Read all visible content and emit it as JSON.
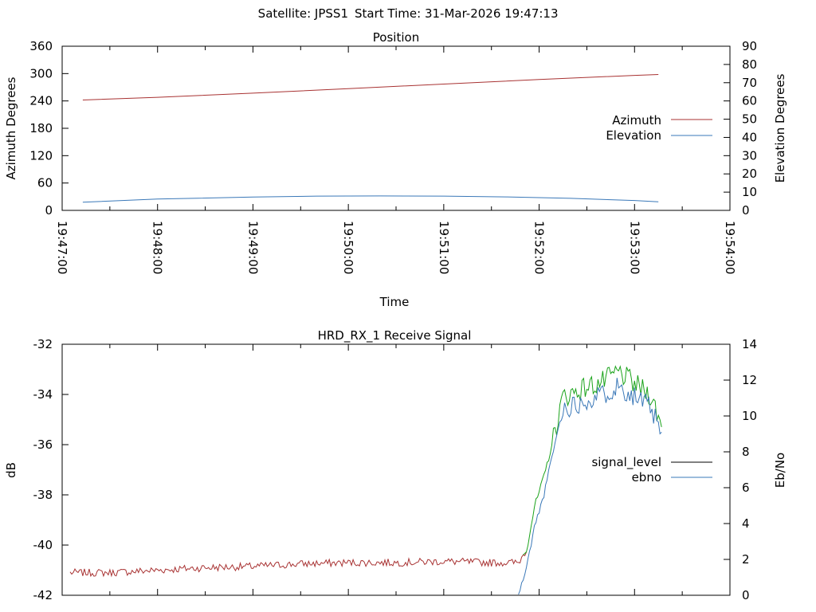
{
  "header": {
    "satellite": "Satellite: JPSS1",
    "start_time": "Start Time: 31-Mar-2026 19:47:13"
  },
  "chart_data": [
    {
      "type": "line",
      "title": "Position",
      "xlabel": "Time",
      "ylabel": "Azimuth Degrees",
      "y2label": "Elevation Degrees",
      "xlim": [
        "19:47:00",
        "19:54:00"
      ],
      "ylim": [
        0,
        360
      ],
      "y2lim": [
        0,
        90
      ],
      "x_ticks": [
        "19:47:00",
        "19:48:00",
        "19:49:00",
        "19:50:00",
        "19:51:00",
        "19:52:00",
        "19:53:00",
        "19:54:00"
      ],
      "y_ticks": [
        0,
        60,
        120,
        180,
        240,
        300,
        360
      ],
      "y2_ticks": [
        0,
        10,
        20,
        30,
        40,
        50,
        60,
        70,
        80,
        90
      ],
      "legend_position": "right",
      "series": [
        {
          "name": "Azimuth",
          "axis": "y",
          "color": "#a83232",
          "x": [
            "19:47:13",
            "19:48:00",
            "19:49:00",
            "19:50:00",
            "19:51:00",
            "19:52:00",
            "19:53:00",
            "19:53:15"
          ],
          "values": [
            242,
            248,
            257,
            267,
            277,
            287,
            296,
            298
          ]
        },
        {
          "name": "Elevation",
          "axis": "y2",
          "color": "#3a78b8",
          "x": [
            "19:47:13",
            "19:48:00",
            "19:49:00",
            "19:49:40",
            "19:50:20",
            "19:51:00",
            "19:51:40",
            "19:52:20",
            "19:53:00",
            "19:53:15"
          ],
          "values": [
            4.5,
            6.2,
            7.3,
            7.8,
            7.9,
            7.8,
            7.4,
            6.6,
            5.4,
            4.7
          ]
        }
      ]
    },
    {
      "type": "line",
      "title": "HRD_RX_1 Receive Signal",
      "ylabel": "dB",
      "y2label": "Eb/No",
      "xlim": [
        "19:47:00",
        "19:54:00"
      ],
      "ylim": [
        -42,
        -32
      ],
      "y2lim": [
        0,
        14
      ],
      "y_ticks": [
        -42,
        -40,
        -38,
        -36,
        -34,
        -32
      ],
      "y2_ticks": [
        0,
        2,
        4,
        6,
        8,
        10,
        12,
        14
      ],
      "legend_position": "right",
      "series": [
        {
          "name": "signal_level",
          "axis": "y",
          "legend_color": "#000000",
          "color_low": "#a83232",
          "color_high": "#1aa31a",
          "threshold_db": -40.2,
          "x": [
            "19:47:05",
            "19:47:30",
            "19:48:00",
            "19:48:30",
            "19:49:00",
            "19:49:30",
            "19:50:00",
            "19:50:30",
            "19:51:00",
            "19:51:30",
            "19:51:47",
            "19:51:52",
            "19:51:57",
            "19:52:03",
            "19:52:08",
            "19:52:15",
            "19:52:30",
            "19:52:40",
            "19:52:50",
            "19:53:00",
            "19:53:10",
            "19:53:15",
            "19:53:17"
          ],
          "values": [
            -41.1,
            -41.1,
            -41.0,
            -40.9,
            -40.85,
            -40.75,
            -40.7,
            -40.7,
            -40.65,
            -40.7,
            -40.7,
            -40.2,
            -38.5,
            -37.3,
            -36.0,
            -34.1,
            -33.7,
            -33.5,
            -33.1,
            -33.6,
            -34.0,
            -34.9,
            -35.3
          ]
        },
        {
          "name": "ebno",
          "axis": "y2",
          "color": "#3a78b8",
          "x": [
            "19:51:47",
            "19:51:52",
            "19:51:57",
            "19:52:03",
            "19:52:08",
            "19:52:15",
            "19:52:30",
            "19:52:40",
            "19:52:50",
            "19:53:00",
            "19:53:10",
            "19:53:15",
            "19:53:17"
          ],
          "values": [
            0.0,
            1.5,
            3.8,
            5.6,
            7.7,
            10.4,
            10.9,
            11.2,
            11.7,
            11.1,
            10.4,
            9.4,
            9.1
          ]
        }
      ]
    }
  ]
}
